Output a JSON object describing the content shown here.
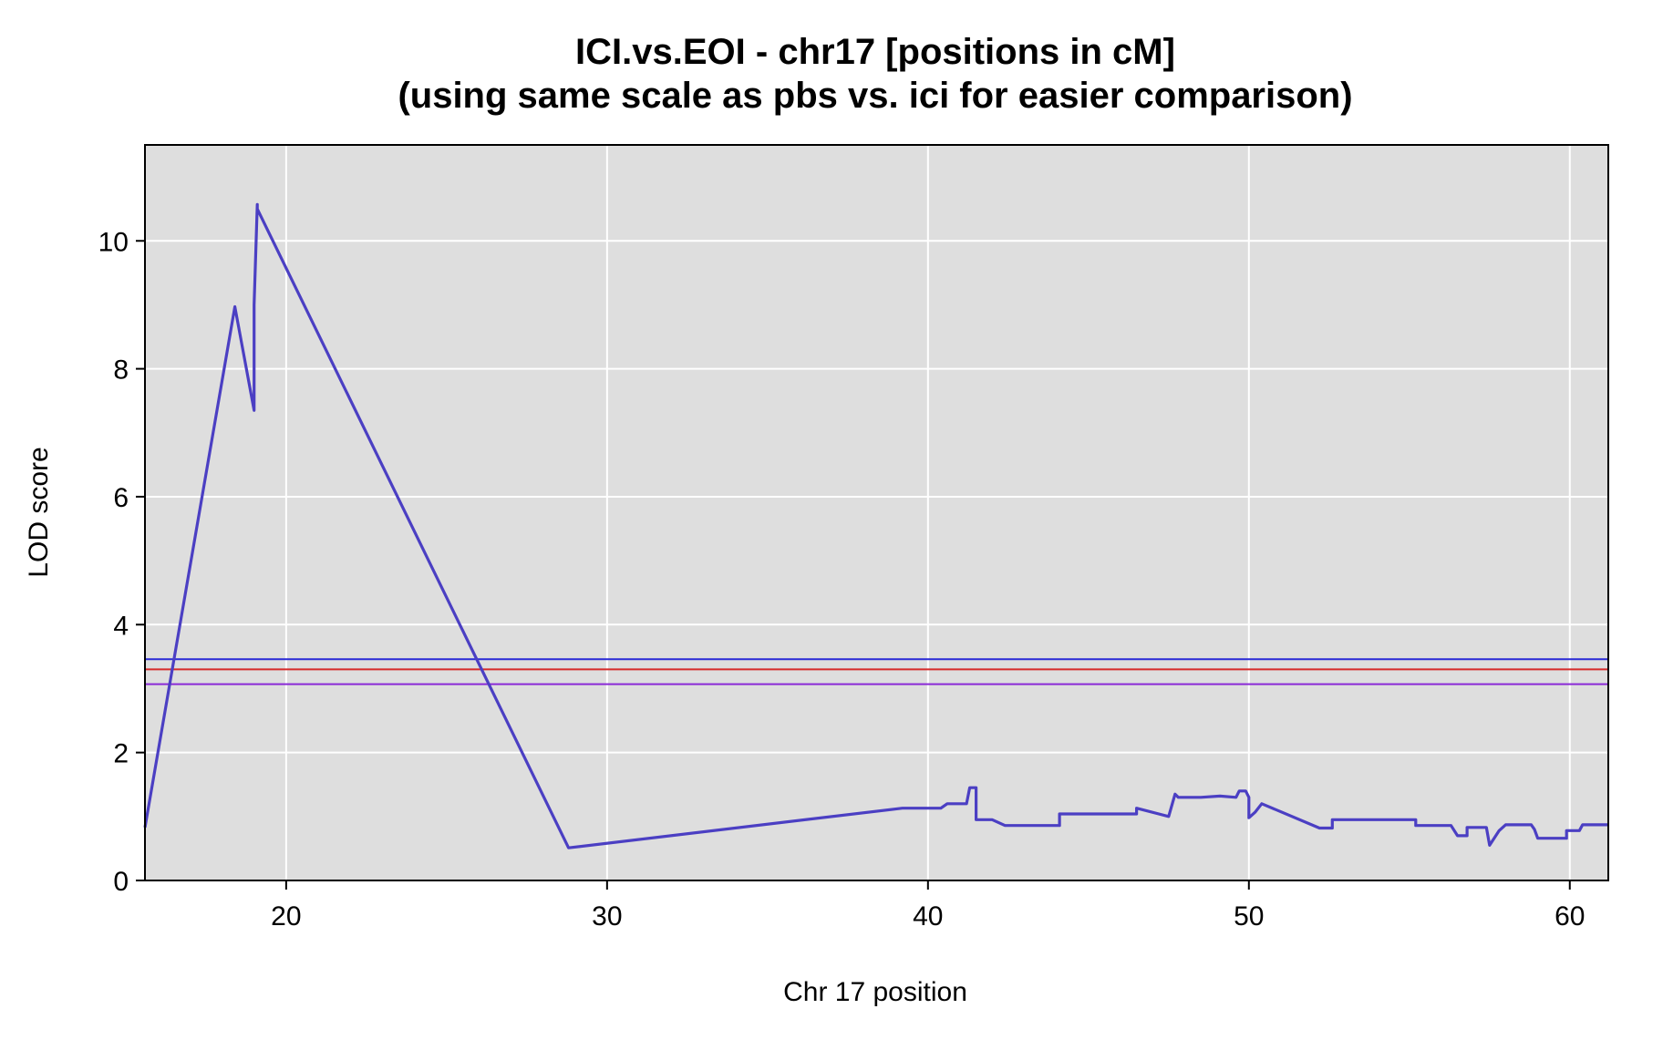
{
  "chart_data": {
    "type": "line",
    "title": "ICI.vs.EOI - chr17 [positions in cM]",
    "subtitle": "(using same scale as pbs  vs. ici for easier comparison)",
    "xlabel": "Chr 17 position",
    "ylabel": "LOD score",
    "xlim": [
      15.6,
      61.2
    ],
    "ylim": [
      0,
      11.5
    ],
    "xticks": [
      20,
      30,
      40,
      50,
      60
    ],
    "yticks": [
      0,
      2,
      4,
      6,
      8,
      10
    ],
    "grid": true,
    "legend": "none",
    "background_color": "#dedede",
    "grid_color": "#ffffff",
    "series": [
      {
        "color": "#4b3fc3",
        "x": [
          15.6,
          18.4,
          19.0,
          19.0,
          19.1,
          19.1,
          28.8,
          39.2,
          40.4,
          40.6,
          41.2,
          41.3,
          41.5,
          41.5,
          42.0,
          42.4,
          44.1,
          44.1,
          46.5,
          46.5,
          47.5,
          47.7,
          47.8,
          48.5,
          49.1,
          49.6,
          49.7,
          49.9,
          50.0,
          50.0,
          50.2,
          50.4,
          52.2,
          52.6,
          52.6,
          54.4,
          54.6,
          55.2,
          55.2,
          56.3,
          56.5,
          56.8,
          56.8,
          57.3,
          57.4,
          57.5,
          57.8,
          58.0,
          58.8,
          58.9,
          59.0,
          59.9,
          59.9,
          60.3,
          60.4,
          61.2
        ],
        "y": [
          0.83,
          8.97,
          7.35,
          9.0,
          10.57,
          10.5,
          0.51,
          1.13,
          1.13,
          1.2,
          1.2,
          1.45,
          1.45,
          0.95,
          0.95,
          0.86,
          0.86,
          1.04,
          1.04,
          1.13,
          1.0,
          1.35,
          1.3,
          1.3,
          1.32,
          1.3,
          1.4,
          1.4,
          1.3,
          0.98,
          1.07,
          1.2,
          0.82,
          0.82,
          0.95,
          0.95,
          0.95,
          0.95,
          0.86,
          0.86,
          0.7,
          0.7,
          0.83,
          0.83,
          0.83,
          0.55,
          0.78,
          0.87,
          0.87,
          0.8,
          0.66,
          0.66,
          0.78,
          0.78,
          0.87,
          0.87
        ]
      }
    ],
    "thresholds": [
      {
        "value": 3.46,
        "color": "#2a2ad6"
      },
      {
        "value": 3.3,
        "color": "#d62a2a"
      },
      {
        "value": 3.07,
        "color": "#8a2ad6"
      }
    ]
  }
}
